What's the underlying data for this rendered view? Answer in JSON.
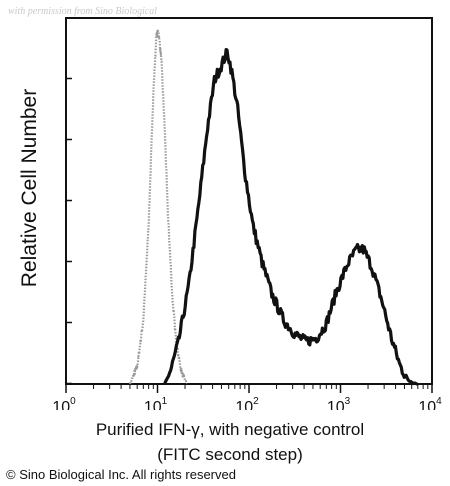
{
  "watermark": "with permission from Sino Biological",
  "copyright": "© Sino Biological Inc. All rights reserved",
  "colors": {
    "negative_control": "#9a9a9a",
    "sample": "#111111",
    "axis": "#111111"
  },
  "chart_data": {
    "type": "line",
    "title": "",
    "ylabel": "Relative Cell Number",
    "xlabel_lines": [
      "Purified IFN-γ, with negative control",
      "(FITC second step)"
    ],
    "x_scale": "log",
    "xlim": [
      1,
      10000
    ],
    "ylim": [
      0,
      1
    ],
    "x_ticks": [
      {
        "base": "10",
        "exp": "0",
        "value": 1
      },
      {
        "base": "10",
        "exp": "1",
        "value": 10
      },
      {
        "base": "10",
        "exp": "2",
        "value": 100
      },
      {
        "base": "10",
        "exp": "3",
        "value": 1000
      },
      {
        "base": "10",
        "exp": "4",
        "value": 10000
      }
    ],
    "y_tick_count": 6,
    "series": [
      {
        "style": "dotted",
        "points": [
          [
            5,
            0.0
          ],
          [
            6,
            0.05
          ],
          [
            7,
            0.18
          ],
          [
            8,
            0.45
          ],
          [
            9,
            0.82
          ],
          [
            9.7,
            0.98
          ],
          [
            10.2,
            1.0
          ],
          [
            11,
            0.92
          ],
          [
            12,
            0.72
          ],
          [
            13,
            0.48
          ],
          [
            14.5,
            0.25
          ],
          [
            16,
            0.12
          ],
          [
            18,
            0.04
          ],
          [
            21,
            0.0
          ]
        ]
      },
      {
        "style": "solid",
        "points": [
          [
            12,
            0.0
          ],
          [
            14,
            0.04
          ],
          [
            17,
            0.12
          ],
          [
            22,
            0.28
          ],
          [
            28,
            0.5
          ],
          [
            35,
            0.72
          ],
          [
            42,
            0.86
          ],
          [
            50,
            0.9
          ],
          [
            58,
            0.94
          ],
          [
            65,
            0.88
          ],
          [
            75,
            0.78
          ],
          [
            90,
            0.6
          ],
          [
            110,
            0.45
          ],
          [
            140,
            0.34
          ],
          [
            180,
            0.25
          ],
          [
            240,
            0.18
          ],
          [
            320,
            0.14
          ],
          [
            420,
            0.12
          ],
          [
            550,
            0.13
          ],
          [
            700,
            0.17
          ],
          [
            900,
            0.26
          ],
          [
            1200,
            0.34
          ],
          [
            1500,
            0.38
          ],
          [
            1800,
            0.38
          ],
          [
            2200,
            0.33
          ],
          [
            2800,
            0.24
          ],
          [
            3600,
            0.13
          ],
          [
            4500,
            0.05
          ],
          [
            5500,
            0.01
          ],
          [
            7000,
            0.0
          ]
        ]
      }
    ]
  }
}
